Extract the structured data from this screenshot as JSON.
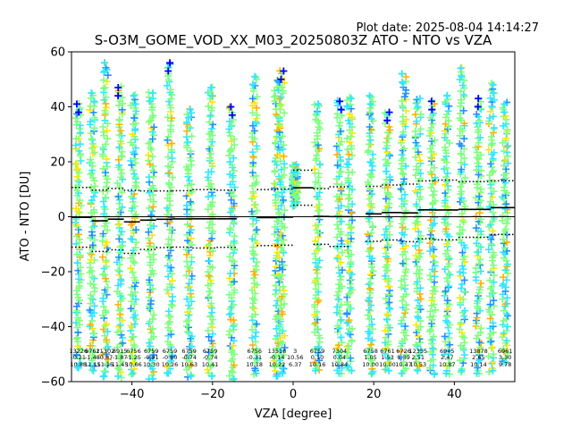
{
  "plot_date": "Plot date: 2025-08-04 14:14:27",
  "chart_data": {
    "type": "scatter",
    "title": "S-O3M_GOME_VOD_XX_M03_20250803Z ATO - NTO vs VZA",
    "xlabel": "VZA [degree]",
    "ylabel": "ATO - NTO [DU]",
    "xlim": [
      -55,
      55
    ],
    "ylim": [
      -60,
      60
    ],
    "xticks": [
      -40,
      -20,
      0,
      20,
      40
    ],
    "yticks": [
      -60,
      -40,
      -20,
      0,
      20,
      40,
      60
    ],
    "grid": false,
    "zero_line": 0,
    "density_colors": [
      "#7fff7f",
      "#33e6ff",
      "#1e90ff",
      "#ffe600",
      "#ffb000",
      "#0000ff"
    ],
    "columns": [
      {
        "x": -53.3,
        "lo": -55,
        "hi": 41,
        "count": "13226",
        "mean": "-0.21",
        "std": "10.88",
        "bin_lo": -55,
        "bin_hi": -50
      },
      {
        "x": -49.8,
        "lo": -56,
        "hi": 45,
        "count": "6762",
        "mean": "-1.48",
        "std": "11.15",
        "bin_lo": -50,
        "bin_hi": -46
      },
      {
        "x": -46.6,
        "lo": -58,
        "hi": 56,
        "count": "11302",
        "mean": "-0.87",
        "std": "11.15",
        "bin_lo": -46,
        "bin_hi": -42
      },
      {
        "x": -43.0,
        "lo": -58,
        "hi": 47,
        "count": "8915",
        "mean": "-1.87",
        "std": "11.45",
        "bin_lo": -42,
        "bin_hi": -38
      },
      {
        "x": -39.6,
        "lo": -57,
        "hi": 44,
        "count": "6756",
        "mean": "-1.25",
        "std": "10.66",
        "bin_lo": -38,
        "bin_hi": -34
      },
      {
        "x": -35.2,
        "lo": -59,
        "hi": 45,
        "count": "6759",
        "mean": "-0.91",
        "std": "10.30",
        "bin_lo": -34,
        "bin_hi": -30
      },
      {
        "x": -30.6,
        "lo": -57,
        "hi": 56,
        "count": "6759",
        "mean": "-0.80",
        "std": "10.26",
        "bin_lo": -30,
        "bin_hi": -25
      },
      {
        "x": -25.8,
        "lo": -58,
        "hi": 39,
        "count": "6759",
        "mean": "-0.74",
        "std": "10.63",
        "bin_lo": -25,
        "bin_hi": -19
      },
      {
        "x": -20.6,
        "lo": -58,
        "hi": 47,
        "count": "6759",
        "mean": "-0.74",
        "std": "10.41",
        "bin_lo": -19,
        "bin_hi": -14
      },
      {
        "x": -15.2,
        "lo": -59,
        "hi": 40,
        "count": "",
        "mean": "",
        "std": "",
        "bin_lo": -14,
        "bin_hi": -9
      },
      {
        "x": -9.6,
        "lo": -57,
        "hi": 51,
        "count": "6756",
        "mean": "-0.31",
        "std": "10.18",
        "bin_lo": -9,
        "bin_hi": -4
      },
      {
        "x": -4.0,
        "lo": -58,
        "hi": 49,
        "count": "13518",
        "mean": "-0.14",
        "std": "10.22",
        "bin_lo": -4,
        "bin_hi": 0
      },
      {
        "x": -2.8,
        "lo": -57,
        "hi": 53,
        "count": "",
        "mean": "",
        "std": "",
        "bin_lo": -4,
        "bin_hi": 0
      },
      {
        "x": 0.5,
        "lo": 4,
        "hi": 19,
        "count": "3",
        "mean": "10.56",
        "std": "6.37",
        "bin_lo": 0,
        "bin_hi": 5
      },
      {
        "x": 6.0,
        "lo": -56,
        "hi": 41,
        "count": "6759",
        "mean": "0.10",
        "std": "10.16",
        "bin_lo": 5,
        "bin_hi": 9
      },
      {
        "x": 11.5,
        "lo": -57,
        "hi": 42,
        "count": "7304",
        "mean": "0.04",
        "std": "10.84",
        "bin_lo": 9,
        "bin_hi": 14
      },
      {
        "x": 14.0,
        "lo": -56,
        "hi": 43,
        "count": "",
        "mean": "",
        "std": "",
        "bin_lo": 14,
        "bin_hi": 18
      },
      {
        "x": 19.2,
        "lo": -57,
        "hi": 44,
        "count": "6758",
        "mean": "1.05",
        "std": "10.00",
        "bin_lo": 18,
        "bin_hi": 22
      },
      {
        "x": 23.4,
        "lo": -56,
        "hi": 38,
        "count": "6761",
        "mean": "1.53",
        "std": "10.00",
        "bin_lo": 22,
        "bin_hi": 27
      },
      {
        "x": 27.4,
        "lo": -57,
        "hi": 52,
        "count": "6726",
        "mean": "1.39",
        "std": "10.47",
        "bin_lo": 27,
        "bin_hi": 31
      },
      {
        "x": 31.0,
        "lo": -56,
        "hi": 43,
        "count": "12355",
        "mean": "2.51",
        "std": "10.53",
        "bin_lo": 31,
        "bin_hi": 35
      },
      {
        "x": 34.6,
        "lo": -57,
        "hi": 42,
        "count": "",
        "mean": "",
        "std": "",
        "bin_lo": 31,
        "bin_hi": 35
      },
      {
        "x": 38.2,
        "lo": -57,
        "hi": 44,
        "count": "6945",
        "mean": "2.47",
        "std": "10.87",
        "bin_lo": 35,
        "bin_hi": 41
      },
      {
        "x": 42.0,
        "lo": -56,
        "hi": 54,
        "count": "",
        "mean": "",
        "std": "",
        "bin_lo": 35,
        "bin_hi": 41
      },
      {
        "x": 46.0,
        "lo": -57,
        "hi": 43,
        "count": "13878",
        "mean": "2.65",
        "std": "10.14",
        "bin_lo": 41,
        "bin_hi": 49
      },
      {
        "x": 49.2,
        "lo": -56,
        "hi": 48,
        "count": "",
        "mean": "",
        "std": "",
        "bin_lo": 41,
        "bin_hi": 49
      },
      {
        "x": 52.6,
        "lo": -53,
        "hi": 41,
        "count": "6961",
        "mean": "3.30",
        "std": "9.78",
        "bin_lo": 49,
        "bin_hi": 55
      }
    ]
  }
}
